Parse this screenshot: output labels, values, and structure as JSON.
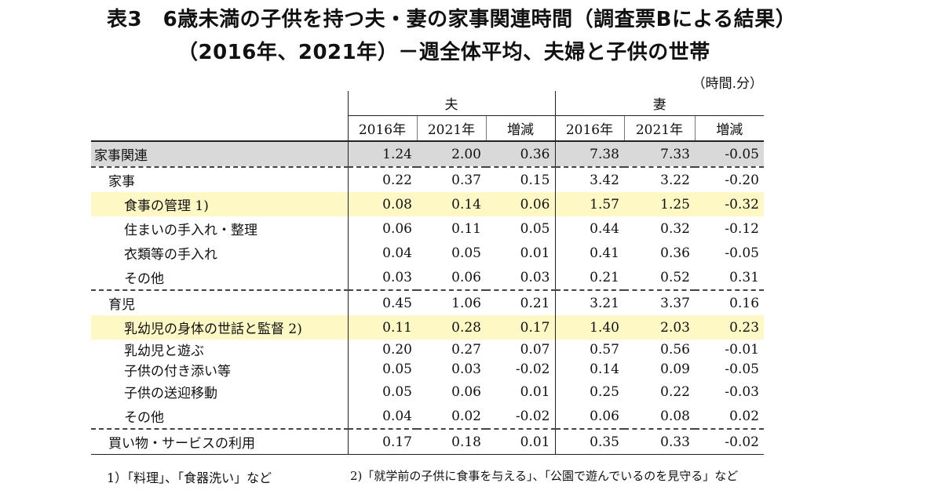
{
  "title_line1": "表3　6歳未満の子供を持つ夫・妻の家事関連時間（調査票Bによる結果）",
  "title_line2": "（2016年、2021年）－週全体平均、夫婦と子供の世帯",
  "unit": "（時間.分）",
  "groups": {
    "husband": "夫",
    "wife": "妻"
  },
  "columns": [
    "2016年",
    "2021年",
    "増減",
    "2016年",
    "2021年",
    "増減"
  ],
  "rows": [
    {
      "label": "家事関連",
      "values": [
        "1.24",
        "2.00",
        "0.36",
        "7.38",
        "7.33",
        "-0.05"
      ]
    },
    {
      "label": "家事",
      "values": [
        "0.22",
        "0.37",
        "0.15",
        "3.42",
        "3.22",
        "-0.20"
      ]
    },
    {
      "label": "食事の管理 1)",
      "values": [
        "0.08",
        "0.14",
        "0.06",
        "1.57",
        "1.25",
        "-0.32"
      ]
    },
    {
      "label": "住まいの手入れ・整理",
      "values": [
        "0.06",
        "0.11",
        "0.05",
        "0.44",
        "0.32",
        "-0.12"
      ]
    },
    {
      "label": "衣類等の手入れ",
      "values": [
        "0.04",
        "0.05",
        "0.01",
        "0.41",
        "0.36",
        "-0.05"
      ]
    },
    {
      "label": "その他",
      "values": [
        "0.03",
        "0.06",
        "0.03",
        "0.21",
        "0.52",
        "0.31"
      ]
    },
    {
      "label": "育児",
      "values": [
        "0.45",
        "1.06",
        "0.21",
        "3.21",
        "3.37",
        "0.16"
      ]
    },
    {
      "label": "乳幼児の身体の世話と監督 2)",
      "values": [
        "0.11",
        "0.28",
        "0.17",
        "1.40",
        "2.03",
        "0.23"
      ]
    },
    {
      "label": "乳幼児と遊ぶ",
      "values": [
        "0.20",
        "0.27",
        "0.07",
        "0.57",
        "0.56",
        "-0.01"
      ]
    },
    {
      "label": "子供の付き添い等",
      "values": [
        "0.05",
        "0.03",
        "-0.02",
        "0.14",
        "0.09",
        "-0.05"
      ]
    },
    {
      "label": "子供の送迎移動",
      "values": [
        "0.05",
        "0.06",
        "0.01",
        "0.25",
        "0.22",
        "-0.03"
      ]
    },
    {
      "label": "その他",
      "values": [
        "0.04",
        "0.02",
        "-0.02",
        "0.06",
        "0.08",
        "0.02"
      ]
    },
    {
      "label": "買い物・サービスの利用",
      "values": [
        "0.17",
        "0.18",
        "0.01",
        "0.35",
        "0.33",
        "-0.02"
      ]
    }
  ],
  "footnotes": [
    "1）「料理」、「食器洗い」など",
    "2)「就学前の子供に食事を与える」、「公園で遊んでいるのを見守る」など"
  ]
}
